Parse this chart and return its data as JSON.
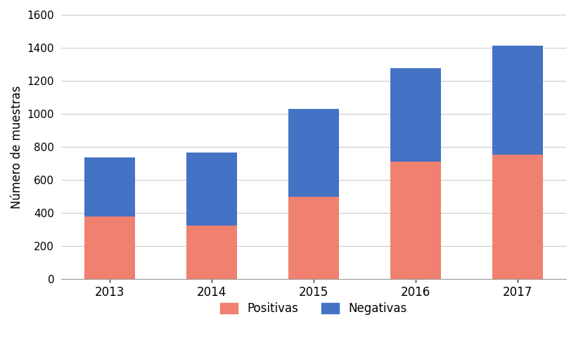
{
  "years": [
    "2013",
    "2014",
    "2015",
    "2016",
    "2017"
  ],
  "positivas": [
    380,
    325,
    500,
    710,
    755
  ],
  "negativas": [
    355,
    440,
    530,
    565,
    660
  ],
  "color_positivas": "#F08070",
  "color_negativas": "#4472C4",
  "ylabel": "Número de muestras",
  "ylim": [
    0,
    1600
  ],
  "yticks": [
    0,
    200,
    400,
    600,
    800,
    1000,
    1200,
    1400,
    1600
  ],
  "legend_positivas": "Positivas",
  "legend_negativas": "Negativas",
  "background_color": "#FFFFFF",
  "grid_color": "#CCCCCC",
  "bar_width": 0.5
}
